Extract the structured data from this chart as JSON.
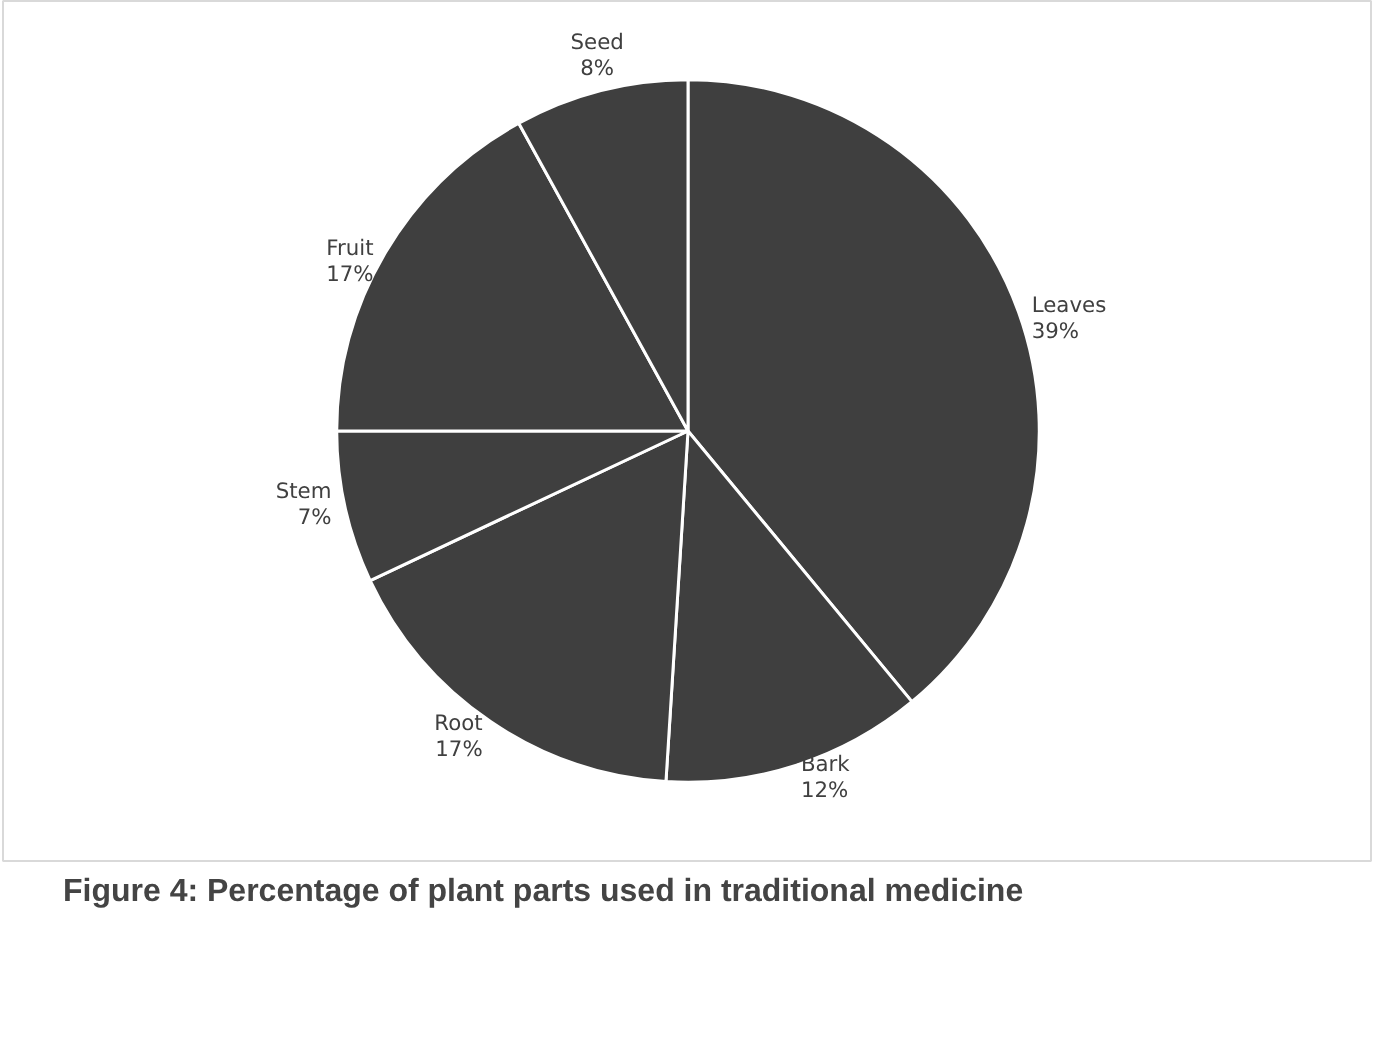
{
  "chart_data": {
    "type": "pie",
    "title": "Figure 4: Percentage of plant parts used in traditional medicine",
    "categories": [
      "Leaves",
      "Bark",
      "Root",
      "Stem",
      "Fruit",
      "Seed"
    ],
    "values": [
      39,
      12,
      17,
      7,
      17,
      8
    ],
    "value_labels": [
      "39%",
      "12%",
      "17%",
      "7%",
      "17%",
      "8%"
    ],
    "colors": [
      "#3f3f3f",
      "#3f3f3f",
      "#3f3f3f",
      "#3f3f3f",
      "#3f3f3f",
      "#3f3f3f"
    ]
  }
}
